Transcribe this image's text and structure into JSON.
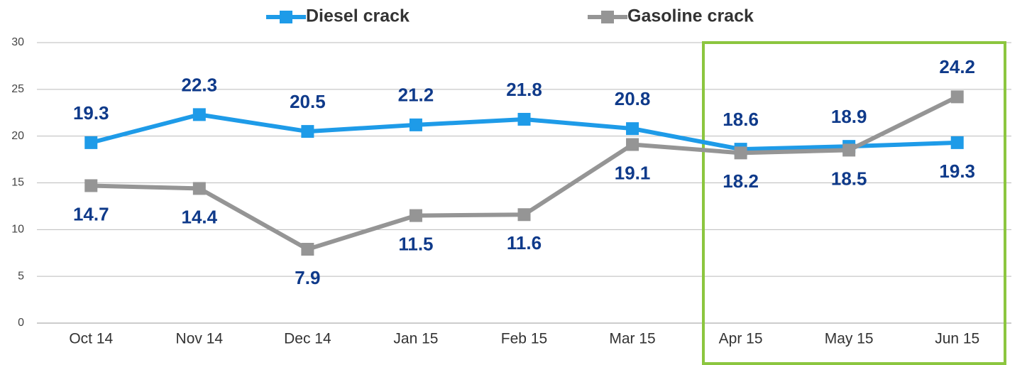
{
  "chart_data": {
    "type": "line",
    "categories": [
      "Oct 14",
      "Nov 14",
      "Dec 14",
      "Jan 15",
      "Feb 15",
      "Mar 15",
      "Apr 15",
      "May 15",
      "Jun 15"
    ],
    "series": [
      {
        "name": "Diesel crack",
        "color": "#1e9be8",
        "values": [
          19.3,
          22.3,
          20.5,
          21.2,
          21.8,
          20.8,
          18.6,
          18.9,
          19.3
        ]
      },
      {
        "name": "Gasoline crack",
        "color": "#959595",
        "values": [
          14.7,
          14.4,
          7.9,
          11.5,
          11.6,
          19.1,
          18.2,
          18.5,
          24.2
        ]
      }
    ],
    "ylim": [
      0,
      30
    ],
    "yticks": [
      0,
      5,
      10,
      15,
      20,
      25,
      30
    ],
    "grid": true,
    "legend": "top"
  }
}
